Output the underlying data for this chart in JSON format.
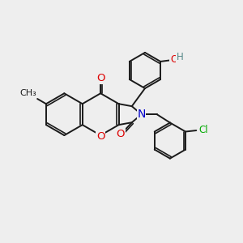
{
  "bg_color": "#eeeeee",
  "bond_color": "#1a1a1a",
  "bond_width": 1.4,
  "atom_colors": {
    "O": "#dd0000",
    "N": "#0000cc",
    "Cl": "#00aa00",
    "OH_H": "#558888",
    "C": "#1a1a1a"
  },
  "font_size": 8.5,
  "title": ""
}
